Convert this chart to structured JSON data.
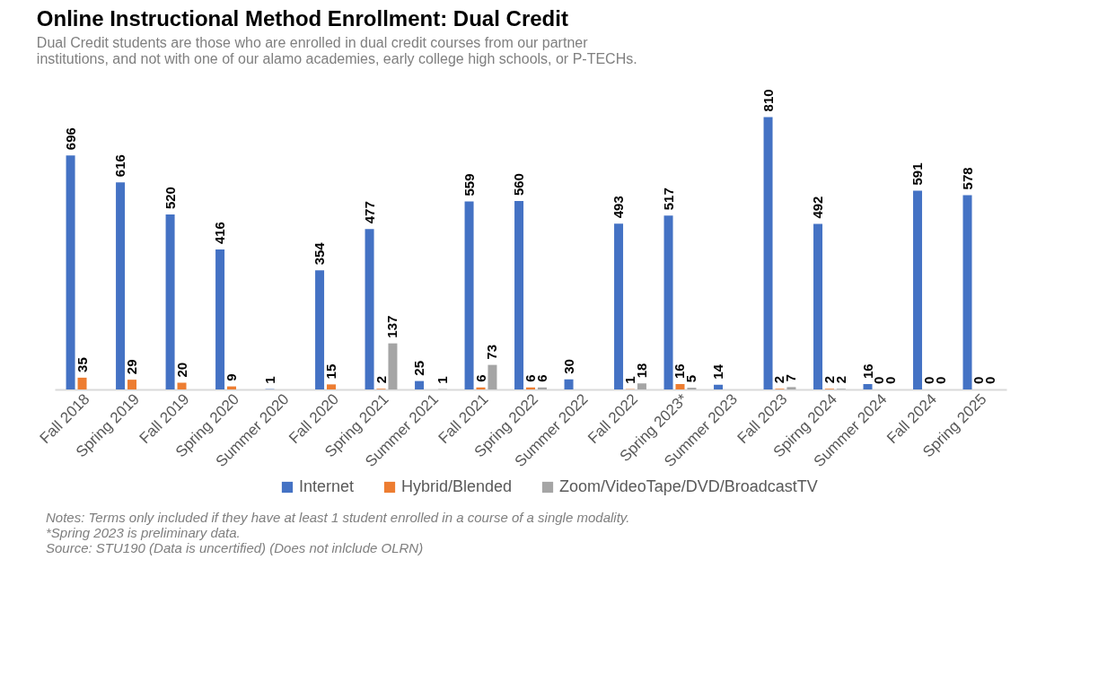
{
  "chart_data": {
    "type": "bar",
    "title": "Online Instructional Method Enrollment: Dual Credit",
    "subtitle": "Dual Credit students are those who are enrolled in dual credit courses from our partner institutions, and not with one of our alamo academies, early college high schools, or P-TECHs.",
    "categories": [
      "Fall 2018",
      "Spring 2019",
      "Fall 2019",
      "Spring 2020",
      "Summer 2020",
      "Fall 2020",
      "Spring 2021",
      "Summer 2021",
      "Fall 2021",
      "Spring 2022",
      "Summer 2022",
      "Fall 2022",
      "Spring 2023*",
      "Summer 2023",
      "Fall 2023",
      "Spirng 2024",
      "Summer 2024",
      "Fall 2024",
      "Spring 2025"
    ],
    "series": [
      {
        "name": "Internet",
        "color": "#4472c4",
        "values": [
          696,
          616,
          520,
          416,
          1,
          354,
          477,
          25,
          559,
          560,
          30,
          493,
          517,
          14,
          810,
          492,
          16,
          591,
          578
        ]
      },
      {
        "name": "Hybrid/Blended",
        "color": "#ed7d31",
        "values": [
          35,
          29,
          20,
          9,
          null,
          15,
          2,
          null,
          6,
          6,
          null,
          1,
          16,
          null,
          2,
          2,
          0,
          0,
          0
        ]
      },
      {
        "name": "Zoom/VideoTape/DVD/BroadcastTV",
        "color": "#a5a5a5",
        "values": [
          null,
          null,
          null,
          null,
          null,
          null,
          137,
          1,
          73,
          6,
          null,
          18,
          5,
          null,
          7,
          2,
          0,
          0,
          0
        ]
      }
    ],
    "data_labels": true,
    "legend": "bottom",
    "grid": false,
    "annotations": [
      "Notes: Terms only included if they have at least 1 student enrolled in a course of a single modality.",
      "*Spring 2023 is preliminary data.",
      "Source: STU190 (Data is uncertified) (Does not inlclude OLRN)"
    ]
  }
}
